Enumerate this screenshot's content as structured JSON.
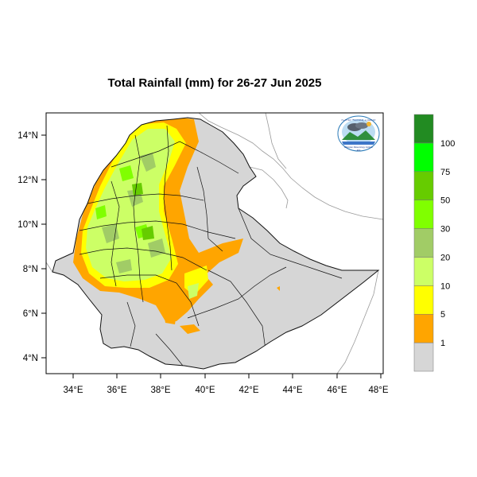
{
  "title": "Total Rainfall (mm) for 26-27 Jun 2025",
  "x_ticks": [
    "34°E",
    "36°E",
    "38°E",
    "40°E",
    "42°E",
    "44°E",
    "46°E",
    "48°E"
  ],
  "y_ticks": [
    "14°N",
    "12°N",
    "10°N",
    "8°N",
    "6°N",
    "4°N"
  ],
  "colorbar": {
    "labels": [
      "1",
      "5",
      "10",
      "20",
      "30",
      "50",
      "75",
      "100"
    ],
    "colors": [
      "#d6d6d6",
      "#ffa500",
      "#ffff00",
      "#ccff66",
      "#a1cc66",
      "#80ff00",
      "#66cc00",
      "#00ff00",
      "#228b22"
    ]
  },
  "logo": {
    "lines": [
      "የኢትዮጵያ ሜቲዎሮሎጂ ኢንስቲትዩት",
      "Ethiopian Meteorology Institute",
      "EMI"
    ]
  },
  "chart_data": {
    "type": "map",
    "title": "Total Rainfall (mm) for 26-27 Jun 2025",
    "xlim": [
      33,
      48
    ],
    "ylim": [
      3,
      15
    ],
    "x_ticks": [
      34,
      36,
      38,
      40,
      42,
      44,
      46,
      48
    ],
    "y_ticks": [
      4,
      6,
      8,
      10,
      12,
      14
    ],
    "levels": [
      1,
      5,
      10,
      20,
      30,
      50,
      75,
      100
    ],
    "colors": [
      "#d6d6d6",
      "#ffa500",
      "#ffff00",
      "#ccff66",
      "#a1cc66",
      "#80ff00",
      "#66cc00",
      "#00ff00",
      "#228b22"
    ]
  }
}
